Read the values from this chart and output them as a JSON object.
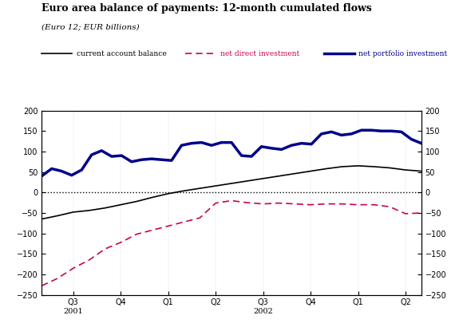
{
  "title": "Euro area balance of payments: 12-month cumulated flows",
  "subtitle": "(Euro 12; EUR billions)",
  "legend": [
    {
      "label": "current account balance",
      "color": "#000000",
      "linestyle": "solid",
      "linewidth": 1.2
    },
    {
      "label": "net direct investment",
      "color": "#cc0055",
      "linestyle": "dashed",
      "linewidth": 1.2
    },
    {
      "label": "net portfolio investment",
      "color": "#00008B",
      "linestyle": "solid",
      "linewidth": 2.5
    }
  ],
  "x_tick_labels": [
    "Q3",
    "Q4",
    "Q1",
    "Q2",
    "Q3",
    "Q4",
    "Q1",
    "Q2"
  ],
  "ylim": [
    -250,
    200
  ],
  "yticks": [
    -250,
    -200,
    -150,
    -100,
    -50,
    0,
    50,
    100,
    150,
    200
  ],
  "current_account": [
    -65,
    -57,
    -48,
    -44,
    -38,
    -30,
    -22,
    -12,
    -3,
    4,
    10,
    16,
    22,
    28,
    34,
    40,
    46,
    52,
    58,
    63,
    65,
    63,
    60,
    55,
    52
  ],
  "net_direct": [
    -228,
    -210,
    -185,
    -165,
    -138,
    -122,
    -102,
    -92,
    -82,
    -72,
    -62,
    -26,
    -20,
    -25,
    -28,
    -26,
    -28,
    -30,
    -28,
    -28,
    -30,
    -30,
    -35,
    -52,
    -50
  ],
  "net_portfolio": [
    40,
    58,
    52,
    42,
    55,
    92,
    102,
    88,
    90,
    75,
    80,
    82,
    80,
    78,
    115,
    120,
    122,
    115,
    122,
    122,
    90,
    88,
    112,
    108,
    105,
    115,
    120,
    118,
    143,
    148,
    140,
    143,
    152,
    152,
    150,
    150,
    148,
    130,
    120
  ],
  "background_color": "#ffffff"
}
